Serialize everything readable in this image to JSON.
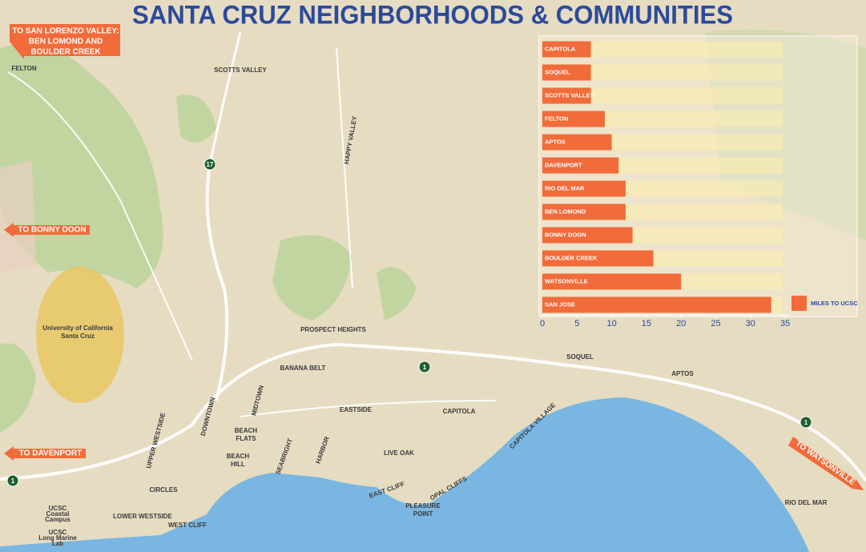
{
  "title": "SANTA CRUZ NEIGHBORHOODS & COMMUNITIES",
  "directions": [
    {
      "lines": [
        "TO SAN LORENZO VALLEY:",
        "BEN LOMOND AND",
        "BOULDER CREEK"
      ]
    },
    {
      "lines": [
        "TO BONNY DOON"
      ]
    },
    {
      "lines": [
        "TO DAVENPORT"
      ]
    },
    {
      "lines": [
        "TO WATSONVILLE"
      ]
    }
  ],
  "map_labels": [
    "FELTON",
    "SCOTTS VALLEY",
    "HAPPY VALLEY",
    "University of California",
    "Santa Cruz",
    "PROSPECT HEIGHTS",
    "BANANA BELT",
    "SOQUEL",
    "APTOS",
    "CAPITOLA",
    "EASTSIDE",
    "MIDTOWN",
    "DOWNTOWN",
    "UPPER WESTSIDE",
    "BEACH",
    "FLATS",
    "SEABRIGHT",
    "HARBOR",
    "BEACH",
    "HILL",
    "LIVE OAK",
    "CAPITOLA VILLAGE",
    "OPAL CLIFFS",
    "EAST CLIFF",
    "PLEASURE",
    "POINT",
    "CIRCLES",
    "LOWER WESTSIDE",
    "WEST CLIFF",
    "RIO DEL MAR",
    "UCSC",
    "Coastal",
    "Campus",
    "UCSC",
    "Long Marine",
    "Lab"
  ],
  "highways": [
    "17",
    "1",
    "1",
    "1"
  ],
  "chart_data": {
    "type": "bar",
    "orientation": "horizontal",
    "categories": [
      "CAPITOLA",
      "SOQUEL",
      "SCOTTS VALLEY",
      "FELTON",
      "APTOS",
      "DAVENPORT",
      "RIO DEL MAR",
      "BEN LOMOND",
      "BONNY DOON",
      "BOULDER CREEK",
      "WATSONVILLE",
      "SAN JOSE"
    ],
    "series": [
      {
        "name": "MILES TO UCSC",
        "color": "#f26b3a",
        "values": [
          7,
          7,
          7,
          9,
          10,
          11,
          12,
          12,
          13,
          16,
          20,
          33
        ]
      }
    ],
    "xlim": [
      0,
      45
    ],
    "xticks": [
      0,
      5,
      10,
      15,
      20,
      25,
      30,
      35
    ],
    "legend": "bottom-right"
  }
}
